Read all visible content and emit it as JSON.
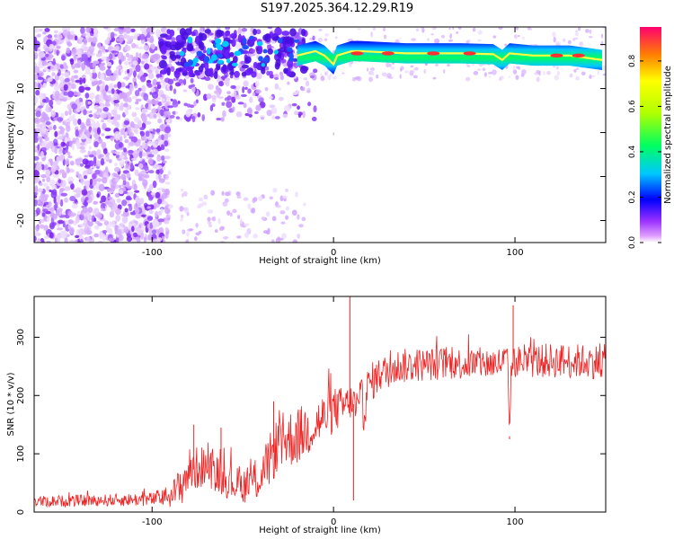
{
  "title": "S197.2025.364.12.29.R19",
  "chart_data": [
    {
      "type": "heatmap",
      "xlabel": "Height of straight line (km)",
      "ylabel": "Frequency (Hz)",
      "xlim": [
        -165,
        150
      ],
      "ylim": [
        -25,
        24
      ],
      "xticks": [
        -100,
        0,
        100
      ],
      "yticks": [
        -20,
        -10,
        0,
        10,
        20
      ],
      "ridge_points": [
        [
          -20,
          17.5
        ],
        [
          -10,
          18.5
        ],
        [
          -5,
          17.5
        ],
        [
          0,
          15.5
        ],
        [
          2,
          17.5
        ],
        [
          10,
          18.5
        ],
        [
          15,
          18.5
        ],
        [
          40,
          18
        ],
        [
          70,
          18
        ],
        [
          88,
          17.8
        ],
        [
          93,
          16.5
        ],
        [
          97,
          18
        ],
        [
          110,
          17.5
        ],
        [
          130,
          17.5
        ],
        [
          148,
          16.5
        ]
      ],
      "peak_points": [
        [
          13,
          18
        ],
        [
          30,
          18
        ],
        [
          55,
          18
        ],
        [
          75,
          18
        ],
        [
          123,
          17.5
        ],
        [
          135,
          17.5
        ]
      ],
      "colorbar": {
        "label": "Normalized spectral amplitude",
        "min": 0,
        "max": 0.95,
        "ticks": [
          0.0,
          0.2,
          0.4,
          0.6,
          0.8
        ],
        "tick_labels": [
          "0.0",
          "0.2",
          "0.4",
          "0.6",
          "0.8"
        ]
      },
      "colors": {
        "low": "#8a2be2",
        "mid": "#00c8ff",
        "high": "#ff2020"
      }
    },
    {
      "type": "line",
      "xlabel": "Height of straight line (km)",
      "ylabel": "SNR (10 * v/v)",
      "xlim": [
        -165,
        150
      ],
      "ylim": [
        0,
        370
      ],
      "xticks": [
        -100,
        0,
        100
      ],
      "yticks": [
        0,
        100,
        200,
        300
      ],
      "series": [
        {
          "name": "SNR",
          "color": "#ee2222",
          "x": [
            -165,
            -130,
            -100,
            -90,
            -85,
            -80,
            -70,
            -60,
            -50,
            -40,
            -30,
            -20,
            -10,
            0,
            5,
            10,
            12,
            14,
            20,
            25,
            35,
            60,
            90,
            96,
            97,
            98,
            100,
            120,
            150
          ],
          "base": [
            18,
            20,
            22,
            28,
            40,
            70,
            80,
            55,
            45,
            60,
            120,
            130,
            150,
            175,
            180,
            190,
            180,
            160,
            220,
            235,
            250,
            255,
            255,
            260,
            130,
            255,
            258,
            260,
            258
          ],
          "noise": [
            10,
            10,
            12,
            20,
            35,
            40,
            35,
            30,
            30,
            40,
            50,
            50,
            45,
            40,
            35,
            30,
            40,
            60,
            35,
            30,
            30,
            28,
            28,
            28,
            0,
            30,
            28,
            30,
            30
          ]
        }
      ],
      "spikes": [
        [
          9,
          370
        ],
        [
          11,
          20
        ],
        [
          -77,
          150
        ],
        [
          -62,
          145
        ],
        [
          -33,
          190
        ],
        [
          97,
          125
        ],
        [
          99,
          355
        ]
      ]
    }
  ]
}
